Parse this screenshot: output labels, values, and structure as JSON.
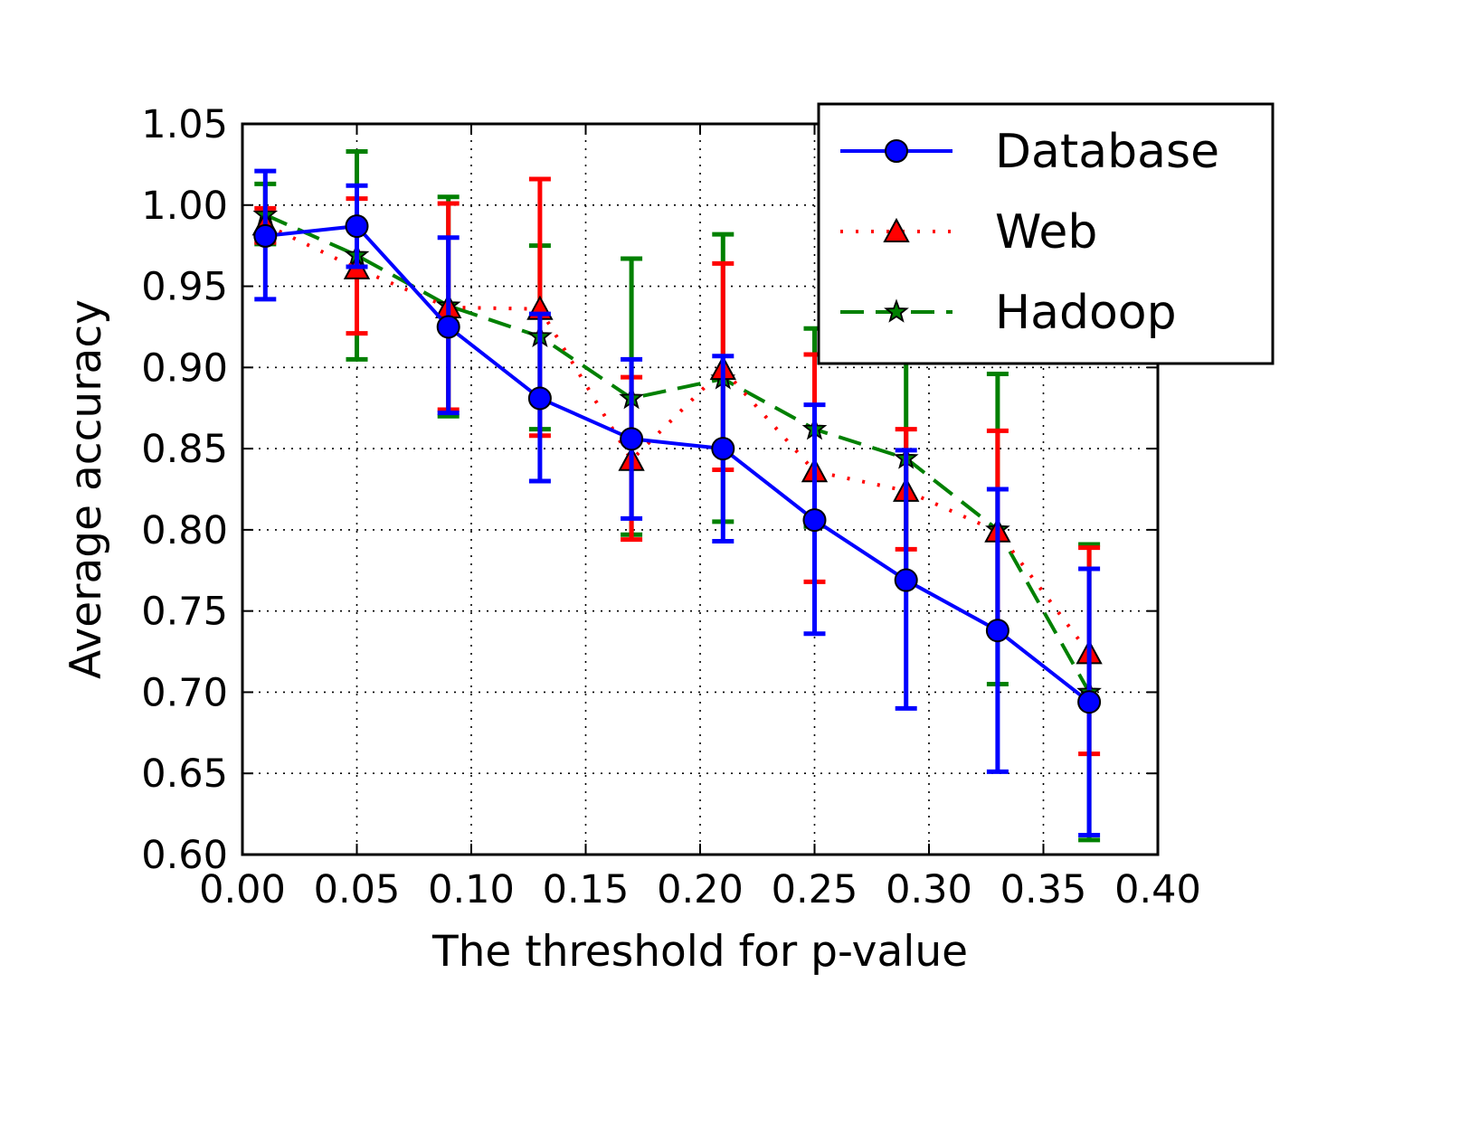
{
  "chart_data": {
    "type": "line",
    "xlabel": "The threshold for p-value",
    "ylabel": "Average accuracy",
    "xlim": [
      0.0,
      0.4
    ],
    "ylim": [
      0.6,
      1.05
    ],
    "xticks": [
      "0.00",
      "0.05",
      "0.10",
      "0.15",
      "0.20",
      "0.25",
      "0.30",
      "0.35",
      "0.40"
    ],
    "yticks": [
      "0.60",
      "0.65",
      "0.70",
      "0.75",
      "0.80",
      "0.85",
      "0.90",
      "0.95",
      "1.00",
      "1.05"
    ],
    "grid": true,
    "legend_position": "top-right",
    "x": [
      0.01,
      0.05,
      0.09,
      0.13,
      0.17,
      0.21,
      0.25,
      0.29,
      0.33,
      0.37
    ],
    "series": [
      {
        "name": "Database",
        "color": "#0000ff",
        "marker": "circle",
        "line_style": "solid",
        "values": [
          0.981,
          0.987,
          0.925,
          0.881,
          0.856,
          0.85,
          0.806,
          0.769,
          0.738,
          0.694
        ],
        "err_low": [
          0.942,
          0.962,
          0.872,
          0.83,
          0.807,
          0.793,
          0.736,
          0.69,
          0.651,
          0.612
        ],
        "err_high": [
          1.021,
          1.012,
          0.98,
          0.933,
          0.905,
          0.907,
          0.877,
          0.849,
          0.825,
          0.776
        ]
      },
      {
        "name": "Web",
        "color": "#ff0000",
        "marker": "triangle",
        "line_style": "dotted",
        "values": [
          0.988,
          0.961,
          0.937,
          0.936,
          0.843,
          0.899,
          0.836,
          0.824,
          0.799,
          0.724
        ],
        "err_low": [
          0.977,
          0.921,
          0.874,
          0.858,
          0.794,
          0.837,
          0.768,
          0.788,
          0.738,
          0.662
        ],
        "err_high": [
          0.998,
          1.004,
          1.001,
          1.016,
          0.894,
          0.964,
          0.908,
          0.862,
          0.861,
          0.789
        ]
      },
      {
        "name": "Hadoop",
        "color": "#008000",
        "marker": "star",
        "line_style": "dashed",
        "values": [
          0.994,
          0.969,
          0.938,
          0.919,
          0.881,
          0.893,
          0.862,
          0.844,
          0.8,
          0.7
        ],
        "err_low": [
          0.976,
          0.905,
          0.87,
          0.862,
          0.797,
          0.805,
          0.802,
          0.768,
          0.705,
          0.609
        ],
        "err_high": [
          1.013,
          1.033,
          1.005,
          0.975,
          0.967,
          0.982,
          0.924,
          0.92,
          0.896,
          0.791
        ]
      }
    ]
  }
}
